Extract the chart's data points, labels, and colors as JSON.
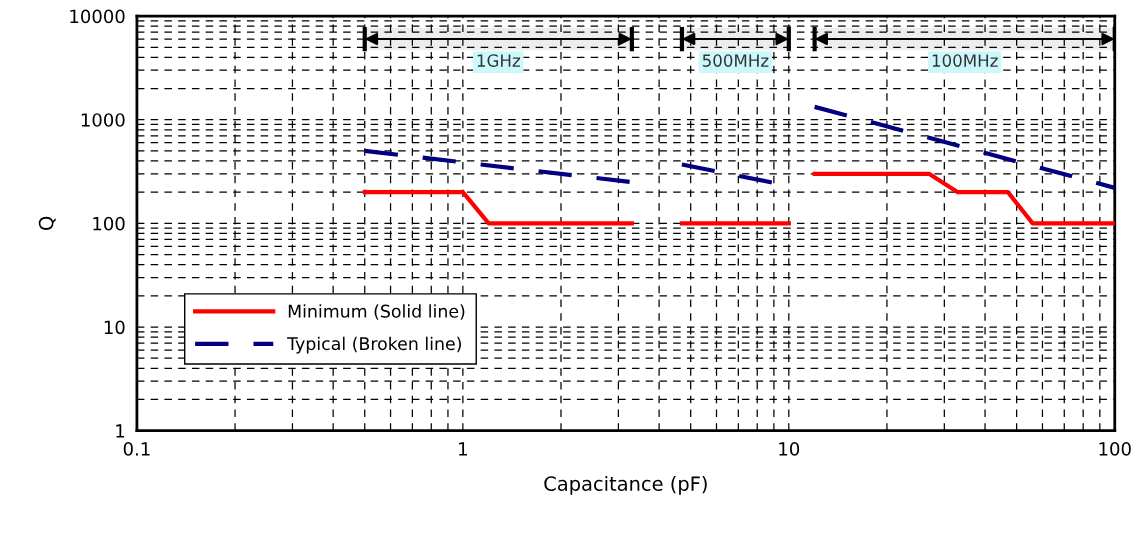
{
  "chart_data": {
    "type": "line",
    "xlabel": "Capacitance (pF)",
    "ylabel": "Q",
    "log": "xy",
    "xlim": [
      0.1,
      100
    ],
    "xticks": [
      0.1,
      1,
      10,
      100
    ],
    "ylim": [
      1,
      10000
    ],
    "yticks": [
      1,
      10,
      100,
      1000,
      10000
    ],
    "grid": true,
    "legend": "bottom left",
    "series": [
      {
        "name": "Minimum (Solid line)",
        "color": "#ff0000",
        "line_style": "solid",
        "x": [
          0.5,
          1,
          1.2,
          3.3,
          null,
          4.7,
          10,
          null,
          12,
          27,
          33,
          47,
          56,
          100
        ],
        "values": [
          200,
          200,
          100,
          100,
          null,
          100,
          100,
          null,
          300,
          300,
          200,
          200,
          100,
          100
        ]
      },
      {
        "name": "Typical (Broken line)",
        "color": "#000080",
        "line_style": "dashed",
        "x": [
          0.5,
          3.3,
          null,
          4.7,
          10,
          null,
          12,
          100
        ],
        "values": [
          500,
          250,
          null,
          370,
          230,
          null,
          1330,
          220
        ]
      }
    ],
    "bands": [
      {
        "axis": "x",
        "from": 0.5,
        "to": 3.3,
        "label": "1GHz",
        "color": "#000000"
      },
      {
        "axis": "x",
        "from": 4.7,
        "to": 10,
        "label": "500MHz",
        "color": "#000000"
      },
      {
        "axis": "x",
        "from": 12,
        "to": 100,
        "label": "100MHz",
        "color": "#000000"
      }
    ]
  }
}
